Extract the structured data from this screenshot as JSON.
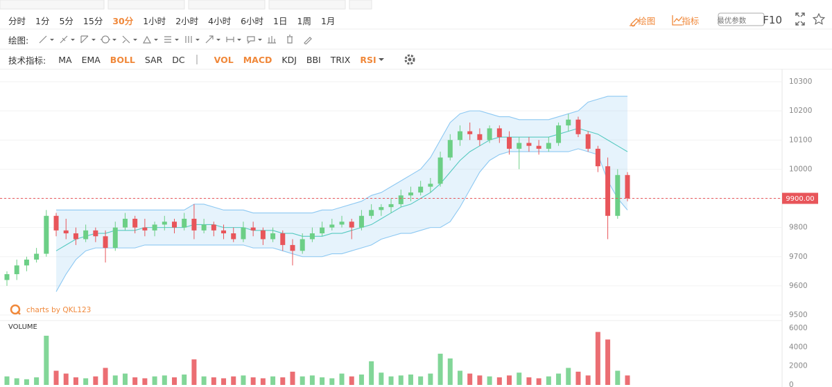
{
  "toolbar": {
    "timeframes": [
      {
        "label": "分时"
      },
      {
        "label": "1分"
      },
      {
        "label": "5分"
      },
      {
        "label": "15分"
      },
      {
        "label": "30分",
        "active": true
      },
      {
        "label": "1小时"
      },
      {
        "label": "2小时"
      },
      {
        "label": "4小时"
      },
      {
        "label": "6小时"
      },
      {
        "label": "1日"
      },
      {
        "label": "1周"
      },
      {
        "label": "1月"
      }
    ],
    "draw_label": "绘图:",
    "indicator_label": "技术指标:",
    "indicator_groups": [
      [
        {
          "label": "MA"
        },
        {
          "label": "EMA"
        },
        {
          "label": "BOLL",
          "active": true
        },
        {
          "label": "SAR"
        },
        {
          "label": "DC"
        }
      ],
      [
        {
          "label": "VOL",
          "active": true
        },
        {
          "label": "MACD",
          "active": true
        },
        {
          "label": "KDJ"
        },
        {
          "label": "BBI"
        },
        {
          "label": "TRIX"
        },
        {
          "label": "RSI",
          "active": true
        }
      ]
    ],
    "right": {
      "draw": "绘图",
      "indicators": "指标",
      "params_button": "最优参数",
      "f10": "F10"
    }
  },
  "chart_data": {
    "type": "candlestick",
    "watermark": "charts by QKL123",
    "volume_label": "VOLUME",
    "up_color": "#6ccf86",
    "down_color": "#e8555a",
    "band_color": "#8cc8f2",
    "middle_color": "#55c9c0",
    "open": [
      9620,
      9640,
      9670,
      9690,
      9710,
      9840,
      9790,
      9780,
      9760,
      9790,
      9770,
      9730,
      9800,
      9830,
      9800,
      9790,
      9810,
      9820,
      9800,
      9830,
      9790,
      9810,
      9790,
      9780,
      9760,
      9800,
      9790,
      9760,
      9780,
      9740,
      9720,
      9760,
      9780,
      9800,
      9810,
      9820,
      9800,
      9840,
      9860,
      9870,
      9880,
      9910,
      9920,
      9940,
      9950,
      10040,
      10100,
      10130,
      10120,
      10100,
      10140,
      10110,
      10070,
      10090,
      10080,
      10070,
      10090,
      10150,
      10170,
      10120,
      10070,
      10010,
      9840,
      9980
    ],
    "high": [
      9650,
      9690,
      9700,
      9730,
      9860,
      9850,
      9830,
      9800,
      9810,
      9800,
      9790,
      9820,
      9850,
      9840,
      9830,
      9820,
      9840,
      9830,
      9850,
      9880,
      9830,
      9820,
      9810,
      9800,
      9820,
      9820,
      9800,
      9800,
      9790,
      9760,
      9780,
      9800,
      9820,
      9830,
      9840,
      9830,
      9860,
      9880,
      9880,
      9900,
      9930,
      9940,
      9960,
      9970,
      10060,
      10120,
      10150,
      10160,
      10140,
      10150,
      10150,
      10130,
      10110,
      10110,
      10100,
      10110,
      10160,
      10190,
      10180,
      10130,
      10080,
      10040,
      10000,
      9990
    ],
    "low": [
      9600,
      9620,
      9650,
      9680,
      9700,
      9770,
      9760,
      9740,
      9750,
      9750,
      9680,
      9720,
      9790,
      9780,
      9770,
      9770,
      9790,
      9780,
      9790,
      9760,
      9780,
      9770,
      9760,
      9750,
      9750,
      9770,
      9740,
      9750,
      9720,
      9670,
      9710,
      9750,
      9770,
      9790,
      9800,
      9760,
      9790,
      9830,
      9840,
      9850,
      9870,
      9890,
      9910,
      9920,
      9940,
      10030,
      10080,
      10100,
      10080,
      10090,
      10090,
      10050,
      10000,
      10060,
      10050,
      10060,
      10080,
      10130,
      10110,
      10060,
      9990,
      9760,
      9830,
      9890
    ],
    "close": [
      9640,
      9670,
      9690,
      9710,
      9840,
      9790,
      9780,
      9760,
      9790,
      9770,
      9730,
      9800,
      9830,
      9800,
      9790,
      9810,
      9820,
      9800,
      9830,
      9790,
      9810,
      9790,
      9780,
      9760,
      9800,
      9790,
      9760,
      9780,
      9740,
      9720,
      9760,
      9780,
      9800,
      9810,
      9820,
      9800,
      9840,
      9860,
      9870,
      9880,
      9910,
      9920,
      9940,
      9950,
      10040,
      10100,
      10130,
      10120,
      10100,
      10140,
      10110,
      10070,
      10090,
      10080,
      10070,
      10090,
      10150,
      10170,
      10120,
      10070,
      10010,
      9840,
      9980,
      9900
    ],
    "volume": [
      900,
      700,
      600,
      800,
      5200,
      1500,
      1200,
      800,
      700,
      900,
      1800,
      1000,
      1200,
      800,
      700,
      900,
      1000,
      800,
      1100,
      2700,
      900,
      800,
      700,
      900,
      1000,
      800,
      700,
      900,
      800,
      1400,
      900,
      1000,
      800,
      700,
      1200,
      900,
      1100,
      2500,
      1300,
      900,
      1000,
      1100,
      900,
      1200,
      3300,
      2800,
      1500,
      1200,
      1000,
      900,
      800,
      1000,
      1300,
      800,
      700,
      900,
      1200,
      1800,
      1400,
      1000,
      5600,
      4800,
      1500,
      1000
    ],
    "bollinger": {
      "upper": [
        null,
        null,
        null,
        null,
        null,
        9860,
        9860,
        9860,
        9860,
        9860,
        9860,
        9860,
        9860,
        9860,
        9860,
        9860,
        9860,
        9860,
        9860,
        9880,
        9880,
        9870,
        9860,
        9860,
        9860,
        9850,
        9850,
        9850,
        9850,
        9850,
        9850,
        9850,
        9860,
        9860,
        9870,
        9880,
        9890,
        9910,
        9920,
        9940,
        9960,
        9980,
        10000,
        10040,
        10100,
        10160,
        10190,
        10200,
        10200,
        10190,
        10180,
        10180,
        10170,
        10170,
        10170,
        10170,
        10180,
        10190,
        10200,
        10230,
        10240,
        10250,
        10250,
        10250
      ],
      "middle": [
        null,
        null,
        null,
        null,
        null,
        9720,
        9740,
        9760,
        9770,
        9780,
        9780,
        9790,
        9790,
        9790,
        9800,
        9800,
        9800,
        9800,
        9800,
        9810,
        9810,
        9810,
        9800,
        9800,
        9800,
        9790,
        9790,
        9790,
        9780,
        9780,
        9770,
        9770,
        9770,
        9780,
        9780,
        9790,
        9800,
        9810,
        9830,
        9850,
        9870,
        9880,
        9900,
        9920,
        9950,
        9990,
        10030,
        10060,
        10080,
        10100,
        10110,
        10110,
        10110,
        10110,
        10110,
        10110,
        10120,
        10130,
        10140,
        10130,
        10120,
        10100,
        10080,
        10060
      ],
      "lower": [
        null,
        null,
        null,
        null,
        null,
        9580,
        9640,
        9690,
        9720,
        9730,
        9730,
        9730,
        9730,
        9730,
        9740,
        9740,
        9740,
        9740,
        9740,
        9740,
        9740,
        9740,
        9740,
        9740,
        9740,
        9730,
        9730,
        9730,
        9720,
        9710,
        9700,
        9700,
        9700,
        9710,
        9710,
        9720,
        9730,
        9740,
        9760,
        9770,
        9780,
        9780,
        9790,
        9800,
        9800,
        9820,
        9870,
        9930,
        9990,
        10030,
        10050,
        10060,
        10060,
        10060,
        10060,
        10060,
        10060,
        10060,
        10070,
        10060,
        10050,
        9960,
        9900,
        9860
      ]
    },
    "ylim": [
      9500,
      10300
    ],
    "yticks": [
      9500,
      9600,
      9700,
      9800,
      9900,
      10000,
      10100,
      10200,
      10300
    ],
    "volume_ylim": [
      0,
      6000
    ],
    "volume_yticks": [
      0,
      2000,
      4000,
      6000
    ],
    "last_price": {
      "value": 9900,
      "label": "9900.00"
    },
    "grid": true
  }
}
